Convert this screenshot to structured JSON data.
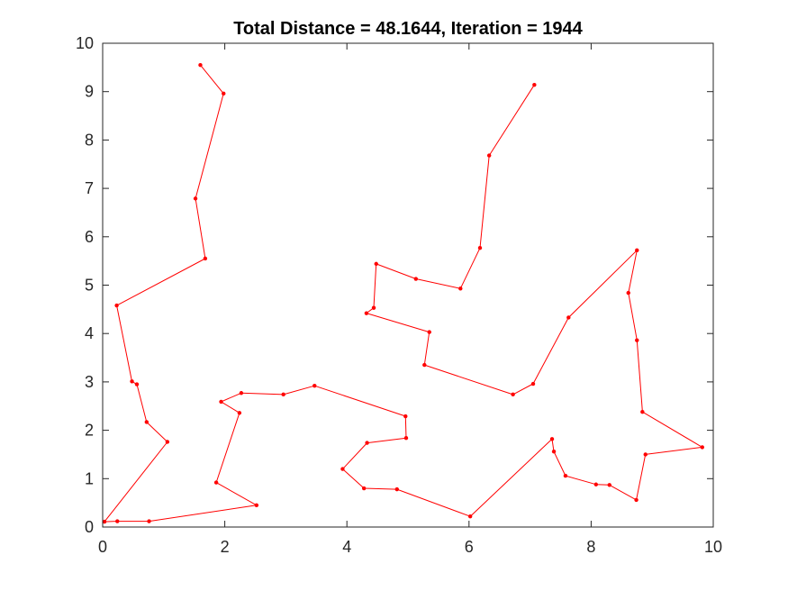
{
  "chart_data": {
    "type": "line",
    "title": "Total Distance = 48.1644, Iteration = 1944",
    "xlabel": "",
    "ylabel": "",
    "xlim": [
      0,
      10
    ],
    "ylim": [
      0,
      10
    ],
    "xticks": [
      "0",
      "2",
      "4",
      "6",
      "8",
      "10"
    ],
    "yticks": [
      "0",
      "1",
      "2",
      "3",
      "4",
      "5",
      "6",
      "7",
      "8",
      "9",
      "10"
    ],
    "grid": false,
    "series": [
      {
        "color": "#ff0000",
        "marker": "dot",
        "points": [
          [
            1.6,
            9.55
          ],
          [
            1.98,
            8.96
          ],
          [
            1.52,
            6.79
          ],
          [
            1.68,
            5.55
          ],
          [
            0.23,
            4.58
          ],
          [
            0.48,
            3.01
          ],
          [
            0.56,
            2.95
          ],
          [
            0.72,
            2.17
          ],
          [
            1.06,
            1.76
          ],
          [
            0.03,
            0.11
          ],
          [
            0.24,
            0.12
          ],
          [
            0.76,
            0.12
          ],
          [
            2.52,
            0.45
          ],
          [
            1.86,
            0.92
          ],
          [
            2.24,
            2.36
          ],
          [
            1.94,
            2.59
          ],
          [
            2.27,
            2.77
          ],
          [
            2.96,
            2.74
          ],
          [
            3.47,
            2.92
          ],
          [
            4.96,
            2.29
          ],
          [
            4.97,
            1.84
          ],
          [
            4.33,
            1.74
          ],
          [
            3.93,
            1.2
          ],
          [
            4.28,
            0.8
          ],
          [
            4.82,
            0.78
          ],
          [
            6.02,
            0.22
          ],
          [
            7.36,
            1.82
          ],
          [
            7.39,
            1.56
          ],
          [
            7.58,
            1.06
          ],
          [
            8.08,
            0.88
          ],
          [
            8.3,
            0.87
          ],
          [
            8.74,
            0.56
          ],
          [
            8.89,
            1.5
          ],
          [
            9.82,
            1.65
          ],
          [
            8.84,
            2.38
          ],
          [
            8.75,
            3.86
          ],
          [
            8.61,
            4.84
          ],
          [
            8.75,
            5.72
          ],
          [
            7.63,
            4.33
          ],
          [
            7.05,
            2.96
          ],
          [
            6.72,
            2.74
          ],
          [
            5.27,
            3.35
          ],
          [
            5.35,
            4.03
          ],
          [
            4.32,
            4.42
          ],
          [
            4.44,
            4.53
          ],
          [
            4.48,
            5.44
          ],
          [
            5.13,
            5.13
          ],
          [
            5.86,
            4.93
          ],
          [
            6.18,
            5.77
          ],
          [
            6.33,
            7.68
          ],
          [
            7.07,
            9.14
          ]
        ]
      }
    ]
  }
}
